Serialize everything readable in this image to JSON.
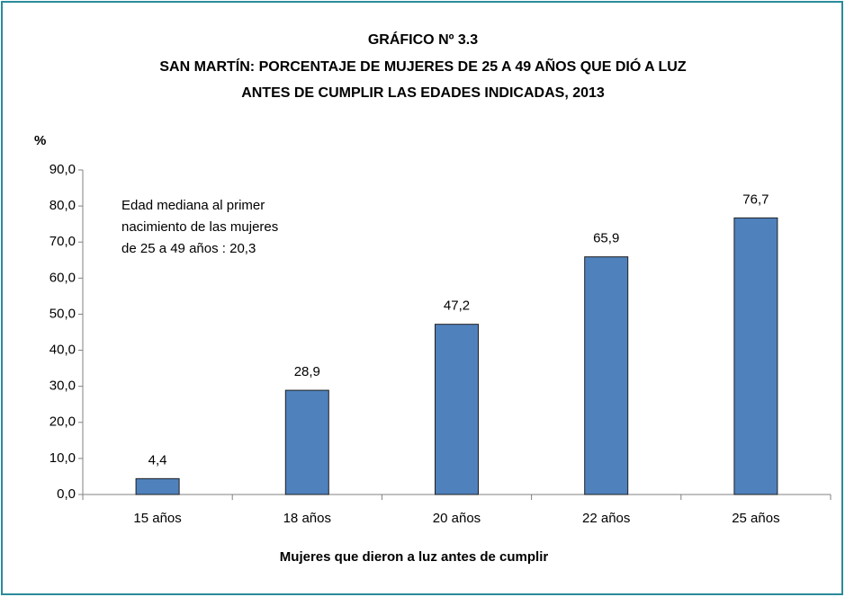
{
  "chart_data": {
    "type": "bar",
    "title": [
      "GRÁFICO Nº 3.3",
      "SAN MARTÍN: PORCENTAJE DE MUJERES DE 25 A 49 AÑOS QUE DIÓ A LUZ",
      "ANTES DE CUMPLIR  LAS EDADES INDICADAS, 2013"
    ],
    "y_label": "%",
    "x_label": "Mujeres que dieron a luz antes de cumplir",
    "annotation": [
      "Edad mediana al primer",
      "nacimiento de las mujeres",
      "de  25 a 49 años : 20,3"
    ],
    "categories": [
      "15 años",
      "18 años",
      "20 años",
      "22 años",
      "25 años"
    ],
    "values": [
      4.4,
      28.9,
      47.2,
      65.9,
      76.7
    ],
    "value_labels": [
      "4,4",
      "28,9",
      "47,2",
      "65,9",
      "76,7"
    ],
    "color": "#4f81bd",
    "ylim": [
      0,
      90
    ],
    "yticks": [
      {
        "value": 0,
        "label": "0,0"
      },
      {
        "value": 10,
        "label": "10,0"
      },
      {
        "value": 20,
        "label": "20,0"
      },
      {
        "value": 30,
        "label": "30,0"
      },
      {
        "value": 40,
        "label": "40,0"
      },
      {
        "value": 50,
        "label": "50,0"
      },
      {
        "value": 60,
        "label": "60,0"
      },
      {
        "value": 70,
        "label": "70,0"
      },
      {
        "value": 80,
        "label": "80,0"
      },
      {
        "value": 90,
        "label": "90,0"
      }
    ],
    "grid": false
  }
}
